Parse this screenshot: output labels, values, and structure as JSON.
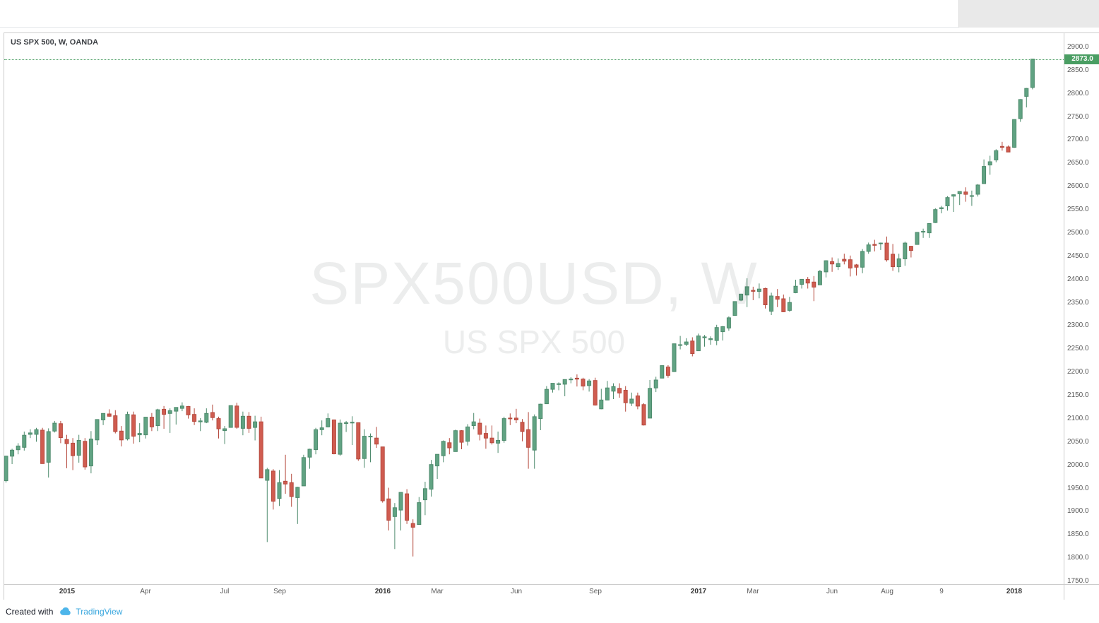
{
  "header": {
    "symbol_title": "US SPX 500, W, OANDA"
  },
  "watermark": {
    "line1": "SPX500USD, W",
    "line2": "US SPX 500"
  },
  "footer": {
    "created_with": "Created with",
    "brand": "TradingView"
  },
  "colors": {
    "up_fill": "#61a383",
    "up_border": "#4d8a6c",
    "down_fill": "#d05c50",
    "down_border": "#b5493d",
    "last_price_bg": "#4a9e63",
    "last_price_line": "#4a9e63",
    "axis_text": "#5a5a5a",
    "brand_blue": "#37a6de"
  },
  "price_axis": {
    "labels": [
      "2900.0",
      "2850.0",
      "2800.0",
      "2750.0",
      "2700.0",
      "2650.0",
      "2600.0",
      "2550.0",
      "2500.0",
      "2450.0",
      "2400.0",
      "2350.0",
      "2300.0",
      "2250.0",
      "2200.0",
      "2150.0",
      "2100.0",
      "2050.0",
      "2000.0",
      "1950.0",
      "1900.0",
      "1850.0",
      "1800.0",
      "1750.0"
    ],
    "top_price": 2900,
    "bottom_price": 1750,
    "step": 50,
    "last_price": 2873.0,
    "last_price_label": "2873.0"
  },
  "time_axis": {
    "labels": [
      {
        "text": "2015",
        "index": 10,
        "major": true
      },
      {
        "text": "Apr",
        "index": 23,
        "major": false
      },
      {
        "text": "Jul",
        "index": 36,
        "major": false
      },
      {
        "text": "Sep",
        "index": 45,
        "major": false
      },
      {
        "text": "2016",
        "index": 62,
        "major": true
      },
      {
        "text": "Mar",
        "index": 71,
        "major": false
      },
      {
        "text": "Jun",
        "index": 84,
        "major": false
      },
      {
        "text": "Sep",
        "index": 97,
        "major": false
      },
      {
        "text": "2017",
        "index": 114,
        "major": true
      },
      {
        "text": "Mar",
        "index": 123,
        "major": false
      },
      {
        "text": "Jun",
        "index": 136,
        "major": false
      },
      {
        "text": "Aug",
        "index": 145,
        "major": false
      },
      {
        "text": "9",
        "index": 154,
        "major": false
      },
      {
        "text": "2018",
        "index": 166,
        "major": true
      }
    ]
  },
  "chart_data": {
    "type": "candlestick",
    "title": "US SPX 500",
    "symbol": "SPX500USD",
    "interval": "W",
    "source": "OANDA",
    "ylim": [
      1750,
      2900
    ],
    "grid": false,
    "candles_format": [
      "open",
      "high",
      "low",
      "close"
    ],
    "candles": [
      [
        1965,
        2019,
        1961,
        2018
      ],
      [
        2018,
        2034,
        2001,
        2031
      ],
      [
        2032,
        2046,
        2022,
        2040
      ],
      [
        2037,
        2071,
        2030,
        2063
      ],
      [
        2065,
        2076,
        2057,
        2068
      ],
      [
        2065,
        2079,
        2049,
        2075
      ],
      [
        2074,
        2079,
        2002,
        2002
      ],
      [
        2005,
        2078,
        1972,
        2071
      ],
      [
        2072,
        2094,
        2069,
        2089
      ],
      [
        2088,
        2094,
        2046,
        2058
      ],
      [
        2054,
        2064,
        1992,
        2045
      ],
      [
        2046,
        2057,
        1988,
        2019
      ],
      [
        2020,
        2064,
        2004,
        2052
      ],
      [
        2050,
        2057,
        1989,
        1995
      ],
      [
        1997,
        2072,
        1981,
        2055
      ],
      [
        2053,
        2097,
        2042,
        2097
      ],
      [
        2096,
        2110,
        2085,
        2110
      ],
      [
        2109,
        2119,
        2103,
        2104
      ],
      [
        2105,
        2117,
        2067,
        2071
      ],
      [
        2072,
        2083,
        2039,
        2053
      ],
      [
        2055,
        2114,
        2052,
        2108
      ],
      [
        2107,
        2114,
        2045,
        2061
      ],
      [
        2064,
        2089,
        2048,
        2067
      ],
      [
        2064,
        2102,
        2056,
        2102
      ],
      [
        2102,
        2111,
        2072,
        2081
      ],
      [
        2084,
        2120,
        2072,
        2118
      ],
      [
        2119,
        2126,
        2077,
        2108
      ],
      [
        2110,
        2121,
        2068,
        2116
      ],
      [
        2115,
        2123,
        2086,
        2123
      ],
      [
        2121,
        2134,
        2115,
        2126
      ],
      [
        2125,
        2126,
        2099,
        2107
      ],
      [
        2108,
        2121,
        2085,
        2093
      ],
      [
        2092,
        2100,
        2072,
        2094
      ],
      [
        2091,
        2121,
        2089,
        2110
      ],
      [
        2112,
        2129,
        2095,
        2101
      ],
      [
        2099,
        2103,
        2056,
        2077
      ],
      [
        2073,
        2083,
        2044,
        2077
      ],
      [
        2080,
        2127,
        2080,
        2127
      ],
      [
        2126,
        2133,
        2077,
        2080
      ],
      [
        2078,
        2114,
        2063,
        2104
      ],
      [
        2104,
        2113,
        2068,
        2078
      ],
      [
        2080,
        2105,
        2052,
        2092
      ],
      [
        2092,
        2103,
        1971,
        1971
      ],
      [
        1966,
        1993,
        1833,
        1989
      ],
      [
        1986,
        1990,
        1903,
        1921
      ],
      [
        1927,
        1988,
        1911,
        1961
      ],
      [
        1964,
        2021,
        1937,
        1958
      ],
      [
        1961,
        1980,
        1909,
        1931
      ],
      [
        1929,
        1952,
        1872,
        1951
      ],
      [
        1954,
        2021,
        1954,
        2015
      ],
      [
        2016,
        2034,
        1991,
        2033
      ],
      [
        2032,
        2079,
        2022,
        2075
      ],
      [
        2075,
        2095,
        2063,
        2079
      ],
      [
        2081,
        2110,
        2080,
        2099
      ],
      [
        2096,
        2097,
        2022,
        2023
      ],
      [
        2022,
        2097,
        2019,
        2089
      ],
      [
        2089,
        2094,
        2070,
        2090
      ],
      [
        2091,
        2104,
        2042,
        2091
      ],
      [
        2090,
        2090,
        2008,
        2012
      ],
      [
        2013,
        2076,
        1993,
        2061
      ],
      [
        2061,
        2067,
        2005,
        2061
      ],
      [
        2057,
        2081,
        2036,
        2044
      ],
      [
        2038,
        2038,
        1918,
        1922
      ],
      [
        1926,
        1950,
        1858,
        1880
      ],
      [
        1888,
        1917,
        1818,
        1907
      ],
      [
        1902,
        1940,
        1858,
        1940
      ],
      [
        1937,
        1947,
        1872,
        1880
      ],
      [
        1873,
        1882,
        1802,
        1865
      ],
      [
        1871,
        1930,
        1871,
        1918
      ],
      [
        1924,
        1963,
        1891,
        1948
      ],
      [
        1947,
        2010,
        1931,
        2000
      ],
      [
        1997,
        2022,
        1969,
        2022
      ],
      [
        2019,
        2052,
        2005,
        2050
      ],
      [
        2047,
        2057,
        2022,
        2036
      ],
      [
        2028,
        2075,
        2028,
        2073
      ],
      [
        2073,
        2074,
        2033,
        2048
      ],
      [
        2050,
        2087,
        2041,
        2081
      ],
      [
        2084,
        2111,
        2076,
        2092
      ],
      [
        2089,
        2099,
        2052,
        2065
      ],
      [
        2067,
        2084,
        2034,
        2057
      ],
      [
        2057,
        2084,
        2043,
        2047
      ],
      [
        2046,
        2071,
        2025,
        2052
      ],
      [
        2052,
        2103,
        2047,
        2099
      ],
      [
        2100,
        2110,
        2085,
        2099
      ],
      [
        2100,
        2120,
        2089,
        2096
      ],
      [
        2091,
        2098,
        2050,
        2071
      ],
      [
        2075,
        2113,
        1991,
        2037
      ],
      [
        2031,
        2108,
        1991,
        2103
      ],
      [
        2099,
        2131,
        2074,
        2130
      ],
      [
        2131,
        2169,
        2131,
        2162
      ],
      [
        2162,
        2175,
        2155,
        2175
      ],
      [
        2173,
        2177,
        2160,
        2174
      ],
      [
        2173,
        2182,
        2147,
        2183
      ],
      [
        2183,
        2188,
        2175,
        2184
      ],
      [
        2186,
        2194,
        2168,
        2184
      ],
      [
        2184,
        2187,
        2160,
        2169
      ],
      [
        2170,
        2184,
        2157,
        2180
      ],
      [
        2181,
        2187,
        2127,
        2128
      ],
      [
        2120,
        2163,
        2119,
        2139
      ],
      [
        2139,
        2180,
        2139,
        2165
      ],
      [
        2158,
        2175,
        2141,
        2168
      ],
      [
        2164,
        2175,
        2144,
        2154
      ],
      [
        2160,
        2169,
        2114,
        2133
      ],
      [
        2132,
        2155,
        2126,
        2141
      ],
      [
        2148,
        2155,
        2119,
        2126
      ],
      [
        2129,
        2132,
        2084,
        2085
      ],
      [
        2100,
        2182,
        2100,
        2164
      ],
      [
        2165,
        2189,
        2156,
        2182
      ],
      [
        2186,
        2213,
        2186,
        2213
      ],
      [
        2210,
        2214,
        2187,
        2192
      ],
      [
        2200,
        2260,
        2200,
        2260
      ],
      [
        2258,
        2277,
        2248,
        2258
      ],
      [
        2259,
        2272,
        2255,
        2264
      ],
      [
        2266,
        2274,
        2233,
        2239
      ],
      [
        2245,
        2282,
        2245,
        2277
      ],
      [
        2273,
        2279,
        2254,
        2275
      ],
      [
        2269,
        2276,
        2258,
        2271
      ],
      [
        2267,
        2301,
        2257,
        2295
      ],
      [
        2286,
        2298,
        2267,
        2297
      ],
      [
        2294,
        2319,
        2288,
        2316
      ],
      [
        2321,
        2351,
        2321,
        2351
      ],
      [
        2354,
        2368,
        2352,
        2367
      ],
      [
        2365,
        2401,
        2339,
        2383
      ],
      [
        2375,
        2383,
        2354,
        2373
      ],
      [
        2373,
        2390,
        2358,
        2378
      ],
      [
        2379,
        2381,
        2336,
        2344
      ],
      [
        2330,
        2370,
        2322,
        2363
      ],
      [
        2362,
        2378,
        2339,
        2356
      ],
      [
        2357,
        2366,
        2328,
        2329
      ],
      [
        2332,
        2361,
        2329,
        2349
      ],
      [
        2370,
        2398,
        2369,
        2384
      ],
      [
        2388,
        2399,
        2379,
        2399
      ],
      [
        2399,
        2404,
        2379,
        2391
      ],
      [
        2393,
        2406,
        2352,
        2382
      ],
      [
        2387,
        2419,
        2387,
        2416
      ],
      [
        2415,
        2440,
        2403,
        2439
      ],
      [
        2437,
        2446,
        2415,
        2432
      ],
      [
        2426,
        2444,
        2419,
        2433
      ],
      [
        2442,
        2454,
        2431,
        2438
      ],
      [
        2441,
        2450,
        2405,
        2423
      ],
      [
        2430,
        2432,
        2407,
        2425
      ],
      [
        2425,
        2464,
        2412,
        2459
      ],
      [
        2459,
        2478,
        2454,
        2473
      ],
      [
        2474,
        2484,
        2459,
        2472
      ],
      [
        2476,
        2478,
        2462,
        2477
      ],
      [
        2477,
        2491,
        2437,
        2441
      ],
      [
        2453,
        2475,
        2417,
        2426
      ],
      [
        2426,
        2454,
        2414,
        2443
      ],
      [
        2443,
        2480,
        2428,
        2477
      ],
      [
        2470,
        2471,
        2446,
        2461
      ],
      [
        2474,
        2500,
        2474,
        2500
      ],
      [
        2502,
        2508,
        2488,
        2502
      ],
      [
        2499,
        2519,
        2488,
        2519
      ],
      [
        2521,
        2552,
        2520,
        2549
      ],
      [
        2551,
        2557,
        2541,
        2553
      ],
      [
        2557,
        2578,
        2547,
        2575
      ],
      [
        2578,
        2582,
        2544,
        2581
      ],
      [
        2583,
        2588,
        2559,
        2588
      ],
      [
        2587,
        2597,
        2566,
        2582
      ],
      [
        2578,
        2590,
        2557,
        2579
      ],
      [
        2582,
        2604,
        2577,
        2602
      ],
      [
        2605,
        2657,
        2605,
        2642
      ],
      [
        2645,
        2665,
        2624,
        2652
      ],
      [
        2656,
        2679,
        2651,
        2676
      ],
      [
        2685,
        2695,
        2676,
        2683
      ],
      [
        2684,
        2687,
        2673,
        2673
      ],
      [
        2683,
        2743,
        2682,
        2743
      ],
      [
        2745,
        2787,
        2738,
        2786
      ],
      [
        2793,
        2811,
        2769,
        2810
      ],
      [
        2812,
        2873,
        2808,
        2873
      ]
    ]
  }
}
